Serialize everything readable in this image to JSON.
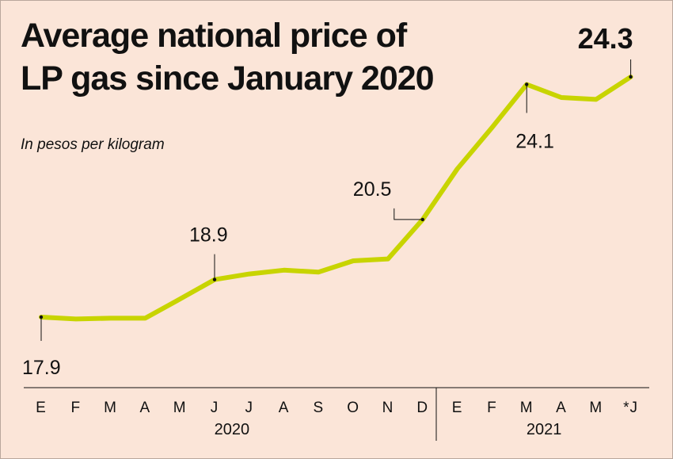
{
  "chart_data": {
    "type": "line",
    "title_lines": [
      "Average national price of",
      "LP gas since January 2020"
    ],
    "subtitle": "In pesos per kilogram",
    "categories": [
      "E",
      "F",
      "M",
      "A",
      "M",
      "J",
      "J",
      "A",
      "S",
      "O",
      "N",
      "D",
      "E",
      "F",
      "M",
      "A",
      "M",
      "*J"
    ],
    "years": [
      {
        "label": "2020",
        "start": 0,
        "end": 11
      },
      {
        "label": "2021",
        "start": 12,
        "end": 17
      }
    ],
    "values": [
      17.9,
      17.85,
      17.87,
      17.87,
      18.38,
      18.9,
      19.05,
      19.15,
      19.1,
      19.4,
      19.45,
      20.5,
      21.85,
      22.95,
      24.1,
      23.75,
      23.7,
      24.3
    ],
    "annotations": [
      {
        "index": 0,
        "label": "17.9"
      },
      {
        "index": 5,
        "label": "18.9"
      },
      {
        "index": 11,
        "label": "20.5"
      },
      {
        "index": 14,
        "label": "24.1"
      },
      {
        "index": 17,
        "label": "24.3"
      }
    ],
    "line_color": "#c8d400",
    "background": "#fbe5d8"
  }
}
